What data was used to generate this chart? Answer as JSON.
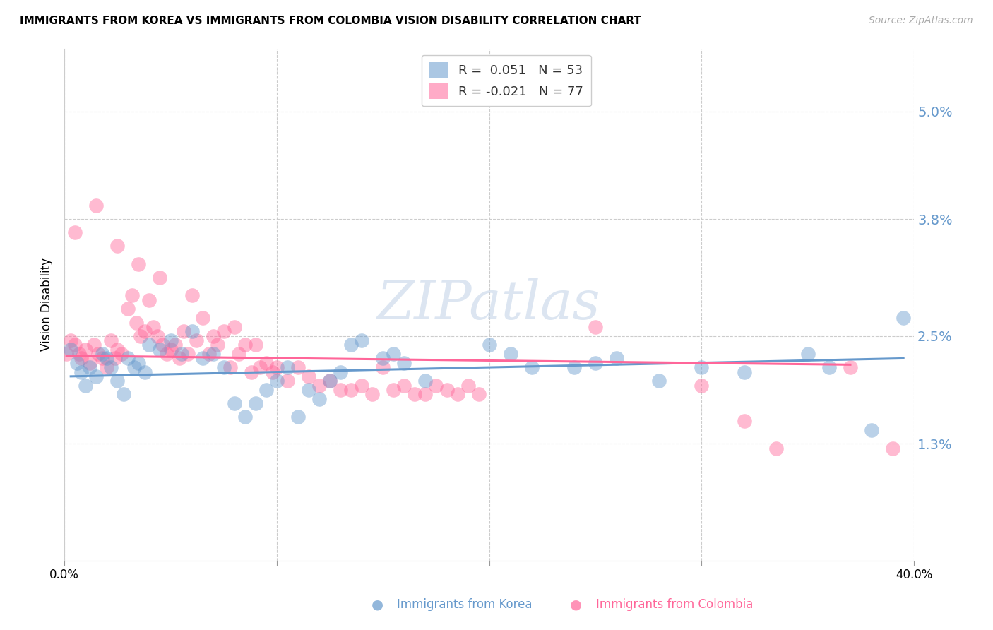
{
  "title": "IMMIGRANTS FROM KOREA VS IMMIGRANTS FROM COLOMBIA VISION DISABILITY CORRELATION CHART",
  "source": "Source: ZipAtlas.com",
  "ylabel": "Vision Disability",
  "ytick_labels": [
    "5.0%",
    "3.8%",
    "2.5%",
    "1.3%"
  ],
  "ytick_values": [
    0.05,
    0.038,
    0.025,
    0.013
  ],
  "xlim": [
    0.0,
    0.4
  ],
  "ylim": [
    0.0,
    0.057
  ],
  "korea_color": "#6699CC",
  "colombia_color": "#FF6699",
  "korea_R": 0.051,
  "korea_N": 53,
  "colombia_R": -0.021,
  "colombia_N": 77,
  "watermark": "ZIPatlas",
  "korea_scatter_x": [
    0.003,
    0.006,
    0.008,
    0.01,
    0.012,
    0.015,
    0.018,
    0.02,
    0.022,
    0.025,
    0.028,
    0.03,
    0.033,
    0.035,
    0.038,
    0.04,
    0.045,
    0.05,
    0.055,
    0.06,
    0.065,
    0.07,
    0.075,
    0.08,
    0.085,
    0.09,
    0.095,
    0.1,
    0.105,
    0.11,
    0.115,
    0.12,
    0.125,
    0.13,
    0.135,
    0.14,
    0.15,
    0.155,
    0.16,
    0.17,
    0.2,
    0.21,
    0.22,
    0.24,
    0.25,
    0.26,
    0.28,
    0.3,
    0.32,
    0.35,
    0.36,
    0.38,
    0.395
  ],
  "korea_scatter_y": [
    0.0235,
    0.022,
    0.021,
    0.0195,
    0.0215,
    0.0205,
    0.023,
    0.0225,
    0.0215,
    0.02,
    0.0185,
    0.0225,
    0.0215,
    0.022,
    0.021,
    0.024,
    0.0235,
    0.0245,
    0.023,
    0.0255,
    0.0225,
    0.023,
    0.0215,
    0.0175,
    0.016,
    0.0175,
    0.019,
    0.02,
    0.0215,
    0.016,
    0.019,
    0.018,
    0.02,
    0.021,
    0.024,
    0.0245,
    0.0225,
    0.023,
    0.022,
    0.02,
    0.024,
    0.023,
    0.0215,
    0.0215,
    0.022,
    0.0225,
    0.02,
    0.0215,
    0.021,
    0.023,
    0.0215,
    0.0145,
    0.027
  ],
  "colombia_scatter_x": [
    0.001,
    0.003,
    0.005,
    0.007,
    0.008,
    0.01,
    0.012,
    0.014,
    0.016,
    0.018,
    0.02,
    0.022,
    0.024,
    0.025,
    0.027,
    0.03,
    0.032,
    0.034,
    0.036,
    0.038,
    0.04,
    0.042,
    0.044,
    0.046,
    0.048,
    0.05,
    0.052,
    0.054,
    0.056,
    0.058,
    0.06,
    0.062,
    0.065,
    0.068,
    0.07,
    0.072,
    0.075,
    0.078,
    0.08,
    0.082,
    0.085,
    0.088,
    0.09,
    0.092,
    0.095,
    0.098,
    0.1,
    0.105,
    0.11,
    0.115,
    0.12,
    0.125,
    0.13,
    0.135,
    0.14,
    0.145,
    0.15,
    0.155,
    0.16,
    0.165,
    0.17,
    0.175,
    0.18,
    0.185,
    0.19,
    0.195,
    0.005,
    0.015,
    0.025,
    0.035,
    0.045,
    0.25,
    0.3,
    0.32,
    0.335,
    0.37,
    0.39
  ],
  "colombia_scatter_y": [
    0.023,
    0.0245,
    0.024,
    0.023,
    0.0225,
    0.0235,
    0.022,
    0.024,
    0.023,
    0.0225,
    0.0215,
    0.0245,
    0.0225,
    0.0235,
    0.023,
    0.028,
    0.0295,
    0.0265,
    0.025,
    0.0255,
    0.029,
    0.026,
    0.025,
    0.024,
    0.023,
    0.0235,
    0.024,
    0.0225,
    0.0255,
    0.023,
    0.0295,
    0.0245,
    0.027,
    0.023,
    0.025,
    0.024,
    0.0255,
    0.0215,
    0.026,
    0.023,
    0.024,
    0.021,
    0.024,
    0.0215,
    0.022,
    0.021,
    0.0215,
    0.02,
    0.0215,
    0.0205,
    0.0195,
    0.02,
    0.019,
    0.019,
    0.0195,
    0.0185,
    0.0215,
    0.019,
    0.0195,
    0.0185,
    0.0185,
    0.0195,
    0.019,
    0.0185,
    0.0195,
    0.0185,
    0.0365,
    0.0395,
    0.035,
    0.033,
    0.0315,
    0.026,
    0.0195,
    0.0155,
    0.0125,
    0.0215,
    0.0125
  ],
  "korea_trendline_x": [
    0.003,
    0.395
  ],
  "korea_trendline_y": [
    0.0205,
    0.0225
  ],
  "colombia_trendline_x": [
    0.001,
    0.37
  ],
  "colombia_trendline_y": [
    0.0228,
    0.0218
  ]
}
